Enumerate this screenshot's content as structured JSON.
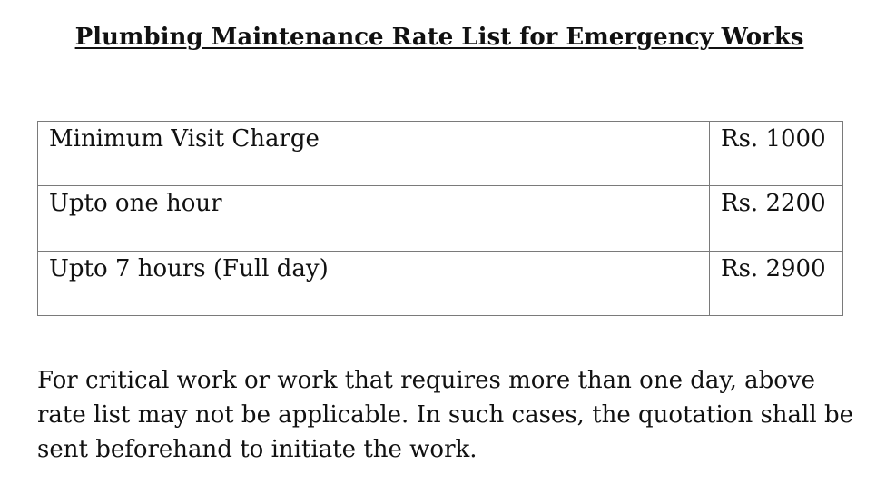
{
  "document": {
    "title": "Plumbing Maintenance Rate List for Emergency Works",
    "rates": [
      {
        "description": "Minimum Visit Charge",
        "rate": "Rs. 1000"
      },
      {
        "description": "Upto one hour",
        "rate": "Rs. 2200"
      },
      {
        "description": "Upto 7 hours (Full day)",
        "rate": "Rs. 2900"
      }
    ],
    "note": "For critical work or work that requires more than one day, above rate list may not be applicable. In such cases, the quotation shall be sent beforehand to initiate the work."
  }
}
